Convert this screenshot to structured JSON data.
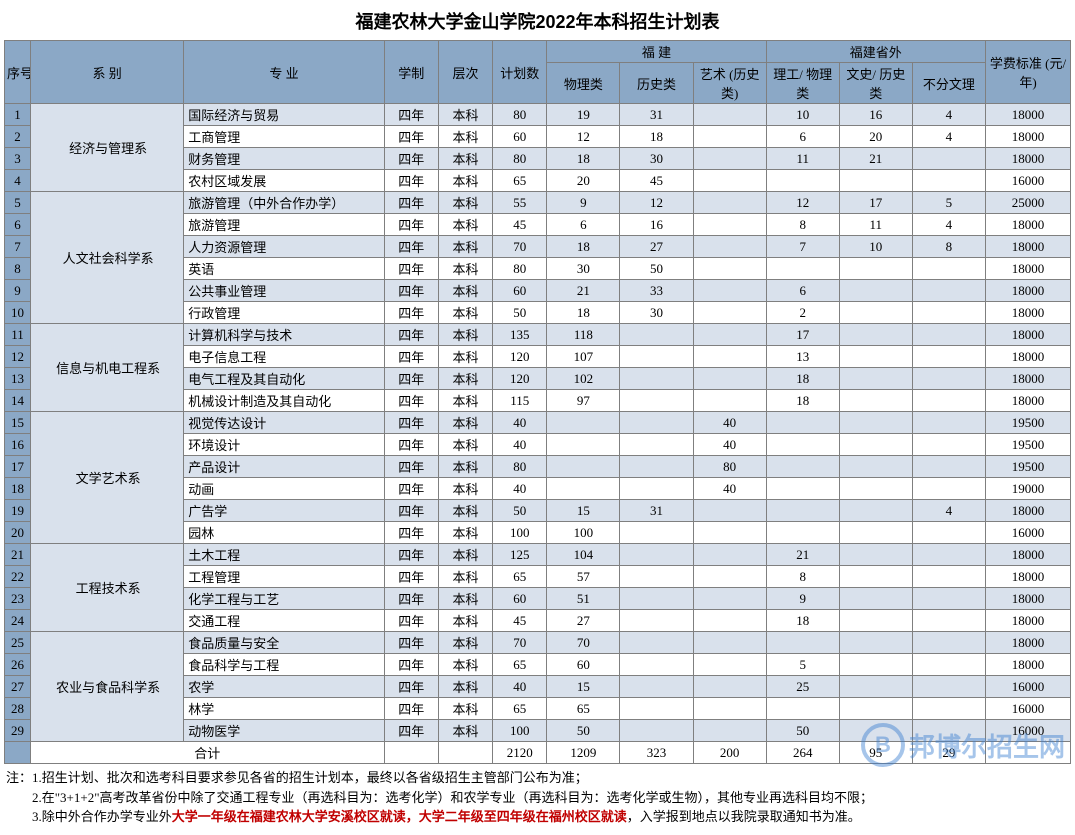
{
  "title": "福建农林大学金山学院2022年本科招生计划表",
  "header": {
    "idx": "序号",
    "dept": "系 别",
    "major": "专 业",
    "duration": "学制",
    "level": "层次",
    "plan": "计划数",
    "fj_group": "福 建",
    "fj_phys": "物理类",
    "fj_hist": "历史类",
    "fj_art": "艺术\n(历史类)",
    "out_group": "福建省外",
    "out_sci": "理工/\n物理类",
    "out_lib": "文史/\n历史类",
    "out_any": "不分文理",
    "fee": "学费标准\n(元/年)"
  },
  "departments": [
    {
      "name": "经济与管理系",
      "rows": [
        {
          "n": 1,
          "major": "国际经济与贸易",
          "dur": "四年",
          "lvl": "本科",
          "plan": 80,
          "fjp": 19,
          "fjh": 31,
          "fja": "",
          "os": 10,
          "ol": 16,
          "oa": 4,
          "fee": 18000
        },
        {
          "n": 2,
          "major": "工商管理",
          "dur": "四年",
          "lvl": "本科",
          "plan": 60,
          "fjp": 12,
          "fjh": 18,
          "fja": "",
          "os": 6,
          "ol": 20,
          "oa": 4,
          "fee": 18000
        },
        {
          "n": 3,
          "major": "财务管理",
          "dur": "四年",
          "lvl": "本科",
          "plan": 80,
          "fjp": 18,
          "fjh": 30,
          "fja": "",
          "os": 11,
          "ol": 21,
          "oa": "",
          "fee": 18000
        },
        {
          "n": 4,
          "major": "农村区域发展",
          "dur": "四年",
          "lvl": "本科",
          "plan": 65,
          "fjp": 20,
          "fjh": 45,
          "fja": "",
          "os": "",
          "ol": "",
          "oa": "",
          "fee": 16000
        }
      ]
    },
    {
      "name": "人文社会科学系",
      "rows": [
        {
          "n": 5,
          "major": "旅游管理（中外合作办学）",
          "dur": "四年",
          "lvl": "本科",
          "plan": 55,
          "fjp": 9,
          "fjh": 12,
          "fja": "",
          "os": 12,
          "ol": 17,
          "oa": 5,
          "fee": 25000
        },
        {
          "n": 6,
          "major": "旅游管理",
          "dur": "四年",
          "lvl": "本科",
          "plan": 45,
          "fjp": 6,
          "fjh": 16,
          "fja": "",
          "os": 8,
          "ol": 11,
          "oa": 4,
          "fee": 18000
        },
        {
          "n": 7,
          "major": "人力资源管理",
          "dur": "四年",
          "lvl": "本科",
          "plan": 70,
          "fjp": 18,
          "fjh": 27,
          "fja": "",
          "os": 7,
          "ol": 10,
          "oa": 8,
          "fee": 18000
        },
        {
          "n": 8,
          "major": "英语",
          "dur": "四年",
          "lvl": "本科",
          "plan": 80,
          "fjp": 30,
          "fjh": 50,
          "fja": "",
          "os": "",
          "ol": "",
          "oa": "",
          "fee": 18000
        },
        {
          "n": 9,
          "major": "公共事业管理",
          "dur": "四年",
          "lvl": "本科",
          "plan": 60,
          "fjp": 21,
          "fjh": 33,
          "fja": "",
          "os": 6,
          "ol": "",
          "oa": "",
          "fee": 18000
        },
        {
          "n": 10,
          "major": "行政管理",
          "dur": "四年",
          "lvl": "本科",
          "plan": 50,
          "fjp": 18,
          "fjh": 30,
          "fja": "",
          "os": 2,
          "ol": "",
          "oa": "",
          "fee": 18000
        }
      ]
    },
    {
      "name": "信息与机电工程系",
      "rows": [
        {
          "n": 11,
          "major": "计算机科学与技术",
          "dur": "四年",
          "lvl": "本科",
          "plan": 135,
          "fjp": 118,
          "fjh": "",
          "fja": "",
          "os": 17,
          "ol": "",
          "oa": "",
          "fee": 18000
        },
        {
          "n": 12,
          "major": "电子信息工程",
          "dur": "四年",
          "lvl": "本科",
          "plan": 120,
          "fjp": 107,
          "fjh": "",
          "fja": "",
          "os": 13,
          "ol": "",
          "oa": "",
          "fee": 18000
        },
        {
          "n": 13,
          "major": "电气工程及其自动化",
          "dur": "四年",
          "lvl": "本科",
          "plan": 120,
          "fjp": 102,
          "fjh": "",
          "fja": "",
          "os": 18,
          "ol": "",
          "oa": "",
          "fee": 18000
        },
        {
          "n": 14,
          "major": "机械设计制造及其自动化",
          "dur": "四年",
          "lvl": "本科",
          "plan": 115,
          "fjp": 97,
          "fjh": "",
          "fja": "",
          "os": 18,
          "ol": "",
          "oa": "",
          "fee": 18000
        }
      ]
    },
    {
      "name": "文学艺术系",
      "rows": [
        {
          "n": 15,
          "major": "视觉传达设计",
          "dur": "四年",
          "lvl": "本科",
          "plan": 40,
          "fjp": "",
          "fjh": "",
          "fja": 40,
          "os": "",
          "ol": "",
          "oa": "",
          "fee": 19500
        },
        {
          "n": 16,
          "major": "环境设计",
          "dur": "四年",
          "lvl": "本科",
          "plan": 40,
          "fjp": "",
          "fjh": "",
          "fja": 40,
          "os": "",
          "ol": "",
          "oa": "",
          "fee": 19500
        },
        {
          "n": 17,
          "major": "产品设计",
          "dur": "四年",
          "lvl": "本科",
          "plan": 80,
          "fjp": "",
          "fjh": "",
          "fja": 80,
          "os": "",
          "ol": "",
          "oa": "",
          "fee": 19500
        },
        {
          "n": 18,
          "major": "动画",
          "dur": "四年",
          "lvl": "本科",
          "plan": 40,
          "fjp": "",
          "fjh": "",
          "fja": 40,
          "os": "",
          "ol": "",
          "oa": "",
          "fee": 19000
        },
        {
          "n": 19,
          "major": "广告学",
          "dur": "四年",
          "lvl": "本科",
          "plan": 50,
          "fjp": 15,
          "fjh": 31,
          "fja": "",
          "os": "",
          "ol": "",
          "oa": 4,
          "fee": 18000
        },
        {
          "n": 20,
          "major": "园林",
          "dur": "四年",
          "lvl": "本科",
          "plan": 100,
          "fjp": 100,
          "fjh": "",
          "fja": "",
          "os": "",
          "ol": "",
          "oa": "",
          "fee": 16000
        }
      ]
    },
    {
      "name": "工程技术系",
      "rows": [
        {
          "n": 21,
          "major": "土木工程",
          "dur": "四年",
          "lvl": "本科",
          "plan": 125,
          "fjp": 104,
          "fjh": "",
          "fja": "",
          "os": 21,
          "ol": "",
          "oa": "",
          "fee": 18000
        },
        {
          "n": 22,
          "major": "工程管理",
          "dur": "四年",
          "lvl": "本科",
          "plan": 65,
          "fjp": 57,
          "fjh": "",
          "fja": "",
          "os": 8,
          "ol": "",
          "oa": "",
          "fee": 18000
        },
        {
          "n": 23,
          "major": "化学工程与工艺",
          "dur": "四年",
          "lvl": "本科",
          "plan": 60,
          "fjp": 51,
          "fjh": "",
          "fja": "",
          "os": 9,
          "ol": "",
          "oa": "",
          "fee": 18000
        },
        {
          "n": 24,
          "major": "交通工程",
          "dur": "四年",
          "lvl": "本科",
          "plan": 45,
          "fjp": 27,
          "fjh": "",
          "fja": "",
          "os": 18,
          "ol": "",
          "oa": "",
          "fee": 18000
        }
      ]
    },
    {
      "name": "农业与食品科学系",
      "rows": [
        {
          "n": 25,
          "major": "食品质量与安全",
          "dur": "四年",
          "lvl": "本科",
          "plan": 70,
          "fjp": 70,
          "fjh": "",
          "fja": "",
          "os": "",
          "ol": "",
          "oa": "",
          "fee": 18000
        },
        {
          "n": 26,
          "major": "食品科学与工程",
          "dur": "四年",
          "lvl": "本科",
          "plan": 65,
          "fjp": 60,
          "fjh": "",
          "fja": "",
          "os": 5,
          "ol": "",
          "oa": "",
          "fee": 18000
        },
        {
          "n": 27,
          "major": "农学",
          "dur": "四年",
          "lvl": "本科",
          "plan": 40,
          "fjp": 15,
          "fjh": "",
          "fja": "",
          "os": 25,
          "ol": "",
          "oa": "",
          "fee": 16000
        },
        {
          "n": 28,
          "major": "林学",
          "dur": "四年",
          "lvl": "本科",
          "plan": 65,
          "fjp": 65,
          "fjh": "",
          "fja": "",
          "os": "",
          "ol": "",
          "oa": "",
          "fee": 16000
        },
        {
          "n": 29,
          "major": "动物医学",
          "dur": "四年",
          "lvl": "本科",
          "plan": 100,
          "fjp": 50,
          "fjh": "",
          "fja": "",
          "os": 50,
          "ol": "",
          "oa": "",
          "fee": 16000
        }
      ]
    }
  ],
  "total": {
    "label": "合计",
    "plan": 2120,
    "fjp": 1209,
    "fjh": 323,
    "fja": 200,
    "os": 264,
    "ol": 95,
    "oa": 29,
    "fee": ""
  },
  "notes": {
    "prefix": "注：",
    "n1": "1.招生计划、批次和选考科目要求参见各省的招生计划本，最终以各省级招生主管部门公布为准；",
    "n2": "2.在\"3+1+2\"高考改革省份中除了交通工程专业（再选科目为：选考化学）和农学专业（再选科目为：选考化学或生物），其他专业再选科目均不限；",
    "n3a": "3.除中外合作办学专业外",
    "n3b": "大学一年级在福建农林大学安溪校区就读，大学二年级至四年级在福州校区就读",
    "n3c": "，入学报到地点以我院录取通知书为准。"
  },
  "watermark": {
    "icon": "B",
    "text": "邦博尔招生网"
  },
  "colors": {
    "header_bg": "#8ba8c6",
    "row_even_bg": "#d9e1ec",
    "row_odd_bg": "#ffffff",
    "border": "#7f7f7f",
    "note_red": "#c00000",
    "watermark": "#3b7fd1"
  }
}
